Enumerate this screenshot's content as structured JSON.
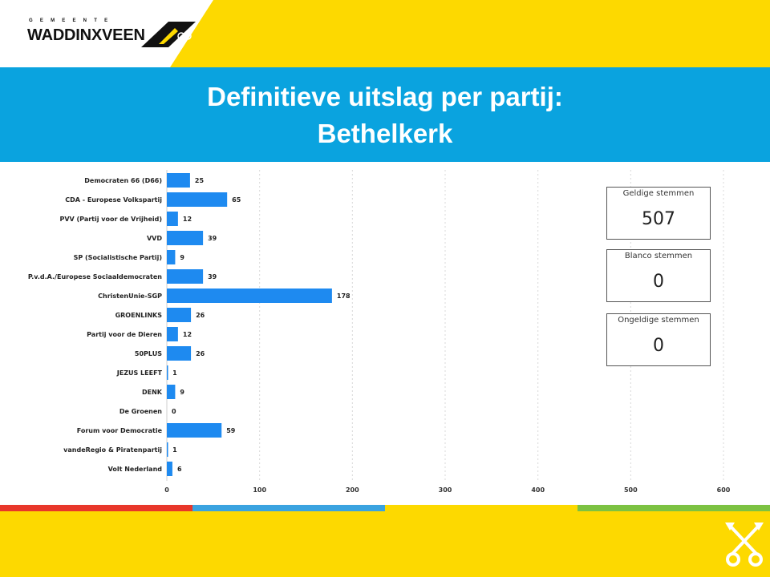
{
  "header": {
    "brand_small": "GEMEENTE",
    "brand_name": "WADDINXVEEN"
  },
  "title": {
    "line1": "Definitieve uitslag per partij:",
    "line2": "Bethelkerk"
  },
  "colors": {
    "yellow": "#fdd900",
    "blue_band": "#0aa3df",
    "bar": "#1e8af0",
    "stripe": [
      "#e8372a",
      "#3aa3e0",
      "#fdd900",
      "#7cc242"
    ]
  },
  "stats": {
    "valid": {
      "label": "Geldige stemmen",
      "value": "507"
    },
    "blank": {
      "label": "Blanco stemmen",
      "value": "0"
    },
    "invalid": {
      "label": "Ongeldige stemmen",
      "value": "0"
    }
  },
  "chart_data": {
    "type": "bar",
    "orientation": "horizontal",
    "categories": [
      "Democraten 66 (D66)",
      "CDA - Europese Volkspartij",
      "PVV (Partij voor de Vrijheid)",
      "VVD",
      "SP (Socialistische Partij)",
      "P.v.d.A./Europese Sociaaldemocraten",
      "ChristenUnie-SGP",
      "GROENLINKS",
      "Partij voor de Dieren",
      "50PLUS",
      "JEZUS LEEFT",
      "DENK",
      "De Groenen",
      "Forum voor Democratie",
      "vandeRegio & Piratenpartij",
      "Volt Nederland"
    ],
    "values": [
      25,
      65,
      12,
      39,
      9,
      39,
      178,
      26,
      12,
      26,
      1,
      9,
      0,
      59,
      1,
      6
    ],
    "xlim": [
      0,
      600
    ],
    "xticks": [
      0,
      100,
      200,
      300,
      400,
      500,
      600
    ],
    "grid": true,
    "title": "",
    "xlabel": "",
    "ylabel": ""
  }
}
